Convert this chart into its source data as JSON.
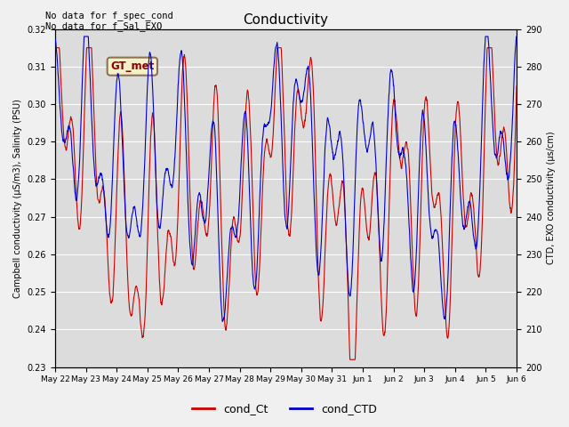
{
  "title": "Conductivity",
  "ylabel_left": "Campbell conductivity (μS/m3), Salinity (PSU)",
  "ylabel_right": "CTD, EXO conductivity (μs/cm)",
  "ylim_left": [
    0.23,
    0.32
  ],
  "ylim_right": [
    200,
    290
  ],
  "yticks_left": [
    0.23,
    0.24,
    0.25,
    0.26,
    0.27,
    0.28,
    0.29,
    0.3,
    0.31,
    0.32
  ],
  "yticks_right": [
    200,
    210,
    220,
    230,
    240,
    250,
    260,
    270,
    280,
    290
  ],
  "xlabel_dates": [
    "May 22",
    "May 23",
    "May 24",
    "May 25",
    "May 26",
    "May 27",
    "May 28",
    "May 29",
    "May 30",
    "May 31",
    "Jun 1",
    "Jun 2",
    "Jun 3",
    "Jun 4",
    "Jun 5",
    "Jun 6"
  ],
  "annotation_text": "No data for f_spec_cond\nNo data for f_Sal_EXO",
  "legend_box_label": "GT_met",
  "legend_box_color": "#f5f0c8",
  "legend_box_edgecolor": "#8b7355",
  "line_red_label": "cond_Ct",
  "line_blue_label": "cond_CTD",
  "line_red_color": "#cc0000",
  "line_blue_color": "#0000cc",
  "fig_bg_color": "#f0f0f0",
  "plot_bg_color": "#dcdcdc",
  "grid_color": "#ffffff",
  "num_points": 2000
}
